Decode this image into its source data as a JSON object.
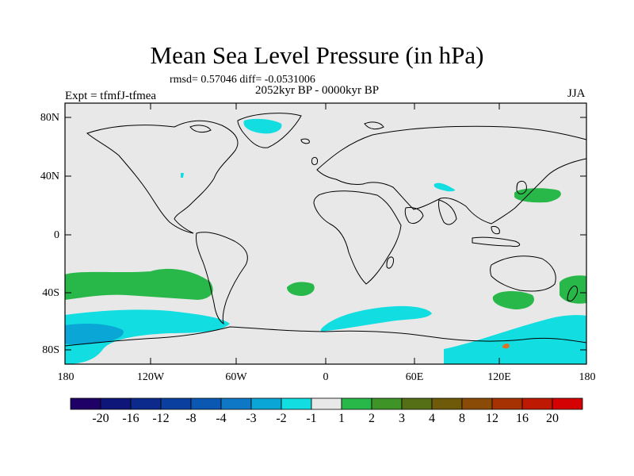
{
  "header": {
    "title": "Mean Sea Level Pressure (in hPa)",
    "stats": "rmsd= 0.57046 diff= -0.0531006",
    "period": "2052kyr BP - 0000kyr BP",
    "experiment": "Expt = tfmfJ-tfmea",
    "season": "JJA"
  },
  "axes": {
    "y_ticks": [
      "80N",
      "40N",
      "0",
      "40S",
      "80S"
    ],
    "x_ticks": [
      "180",
      "120W",
      "60W",
      "0",
      "60E",
      "120E",
      "180"
    ]
  },
  "colorbar": {
    "labels": [
      "-20",
      "-16",
      "-12",
      "-8",
      "-4",
      "-3",
      "-2",
      "-1",
      "1",
      "2",
      "3",
      "4",
      "8",
      "12",
      "16",
      "20"
    ],
    "colors": [
      "#1f0066",
      "#0f1679",
      "#0c2a8c",
      "#0a3f9f",
      "#0b58b3",
      "#0f78c6",
      "#0aa6d6",
      "#12dde0",
      "#e8e8e8",
      "#28b84a",
      "#3f9428",
      "#546f16",
      "#6e5a08",
      "#8a4b06",
      "#a63204",
      "#bd1903",
      "#d40202"
    ]
  },
  "map": {
    "background_color": "#e8e8e8",
    "land_outline_color": "#000000"
  }
}
